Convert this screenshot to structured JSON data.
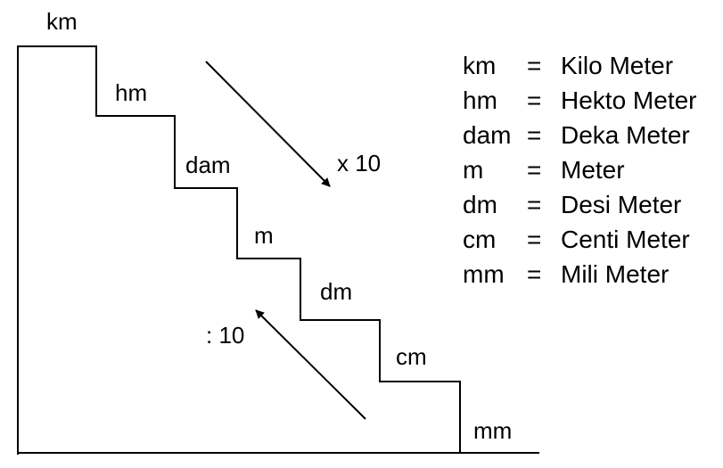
{
  "steps": [
    {
      "label": "km"
    },
    {
      "label": "hm"
    },
    {
      "label": "dam"
    },
    {
      "label": "m"
    },
    {
      "label": "dm"
    },
    {
      "label": "cm"
    },
    {
      "label": "mm"
    }
  ],
  "arrows": {
    "down": {
      "label": "x 10"
    },
    "up": {
      "label": ": 10"
    }
  },
  "legend": [
    {
      "abbr": "km",
      "eq": "=",
      "name": "Kilo Meter"
    },
    {
      "abbr": "hm",
      "eq": "=",
      "name": "Hekto Meter"
    },
    {
      "abbr": "dam",
      "eq": "=",
      "name": "Deka Meter"
    },
    {
      "abbr": "m",
      "eq": "=",
      "name": "Meter"
    },
    {
      "abbr": "dm",
      "eq": "=",
      "name": "Desi Meter"
    },
    {
      "abbr": "cm",
      "eq": "=",
      "name": "Centi Meter"
    },
    {
      "abbr": "mm",
      "eq": "=",
      "name": "Mili Meter"
    }
  ],
  "colors": {
    "line": "#000000",
    "background": "#ffffff"
  }
}
